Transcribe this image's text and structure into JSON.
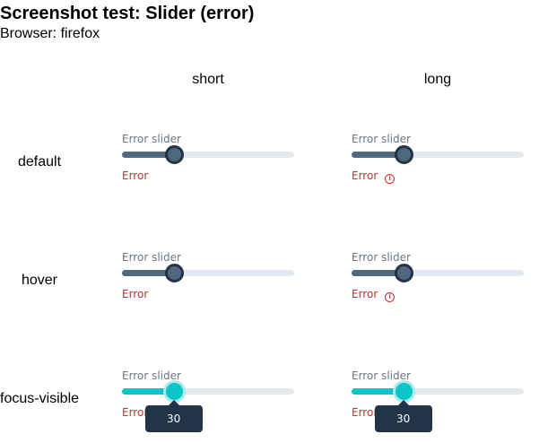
{
  "page": {
    "title": "Screenshot test: Slider (error)",
    "browser": "Browser: firefox"
  },
  "columns": [
    "short",
    "long"
  ],
  "rows": [
    "default",
    "hover",
    "focus-visible"
  ],
  "slider": {
    "label": "Error slider",
    "error_text": "Error",
    "value": 30,
    "min": 0,
    "max": 100,
    "tooltip_value": "30"
  },
  "icons": {
    "error_info": "info-circle-icon"
  },
  "colors": {
    "track": "#e2e8ee",
    "fill": "#50687d",
    "thumb_border": "#243447",
    "focus_fill": "#0bc5c8",
    "focus_ring": "#a9ebec",
    "error": "#c53030",
    "label": "#6b7785",
    "tooltip_bg": "#223548"
  }
}
